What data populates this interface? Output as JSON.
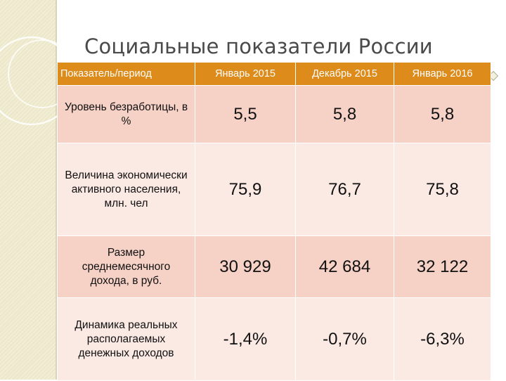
{
  "slide": {
    "title": "Социальные показатели России"
  },
  "table": {
    "headers": [
      "Показатель/период",
      "Январь 2015",
      "Декабрь 2015",
      "Январь 2016"
    ],
    "rows": [
      {
        "label": "Уровень безработицы, в %",
        "values": [
          "5,5",
          "5,8",
          "5,8"
        ]
      },
      {
        "label": "Величина экономически активного населения, млн. чел",
        "values": [
          "75,9",
          "76,7",
          "75,8"
        ]
      },
      {
        "label": "Размер среднемесячного дохода, в руб.",
        "values": [
          "30 929",
          "42 684",
          "32 122"
        ]
      },
      {
        "label": "Динамика реальных располагаемых денежных доходов",
        "values": [
          "-1,4%",
          "-0,7%",
          "-6,3%"
        ]
      }
    ]
  },
  "colors": {
    "header_bg": "#dd8b1b",
    "row_odd_bg": "#f6d1c6",
    "row_even_bg": "#fbe9e4",
    "side_strip": "#ece8c9"
  }
}
